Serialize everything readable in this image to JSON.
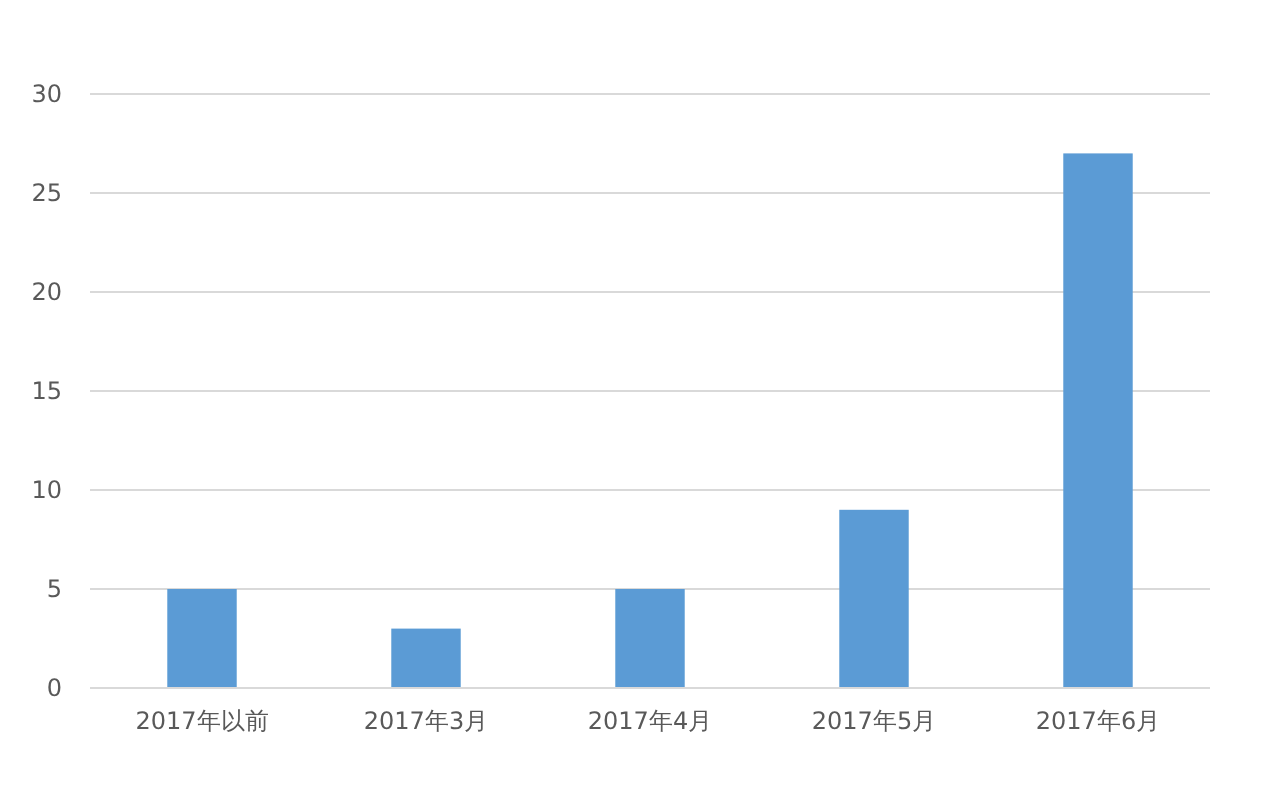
{
  "chart_data": {
    "type": "bar",
    "categories": [
      "2017年以前",
      "2017年3月",
      "2017年4月",
      "2017年5月",
      "2017年6月"
    ],
    "values": [
      5,
      3,
      5,
      9,
      27
    ],
    "color": "#5b9bd5",
    "ylim": [
      0,
      30
    ],
    "yticks": [
      0,
      5,
      10,
      15,
      20,
      25,
      30
    ],
    "grid": "y"
  }
}
